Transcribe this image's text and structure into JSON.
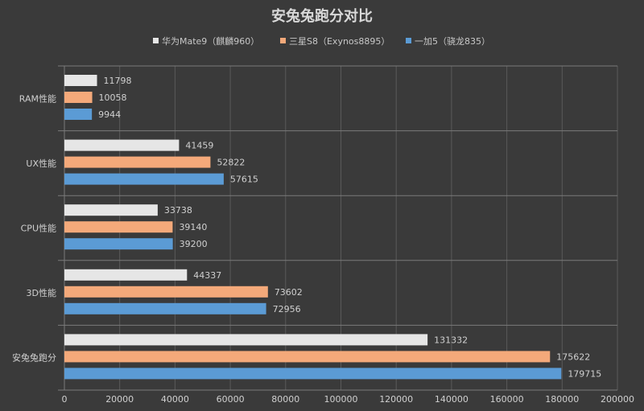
{
  "chart_data": {
    "type": "bar",
    "orientation": "horizontal",
    "title": "安兔兔跑分对比",
    "categories": [
      "RAM性能",
      "UX性能",
      "CPU性能",
      "3D性能",
      "安兔兔跑分"
    ],
    "series": [
      {
        "name": "华为Mate9（麒麟960）",
        "color": "#e6e6e6",
        "values": [
          11798,
          41459,
          33738,
          44337,
          131332
        ]
      },
      {
        "name": "三星S8（Exynos8895）",
        "color": "#f4a97a",
        "values": [
          10058,
          52822,
          39140,
          73602,
          175622
        ]
      },
      {
        "name": "一加5（骁龙835）",
        "color": "#5b9bd5",
        "values": [
          9944,
          57615,
          39200,
          72956,
          179715
        ]
      }
    ],
    "xlim": [
      0,
      200000
    ],
    "x_ticks": [
      "0",
      "20000",
      "40000",
      "60000",
      "80000",
      "100000",
      "120000",
      "140000",
      "160000",
      "180000",
      "200000"
    ],
    "legend_position": "top",
    "grid": true
  }
}
